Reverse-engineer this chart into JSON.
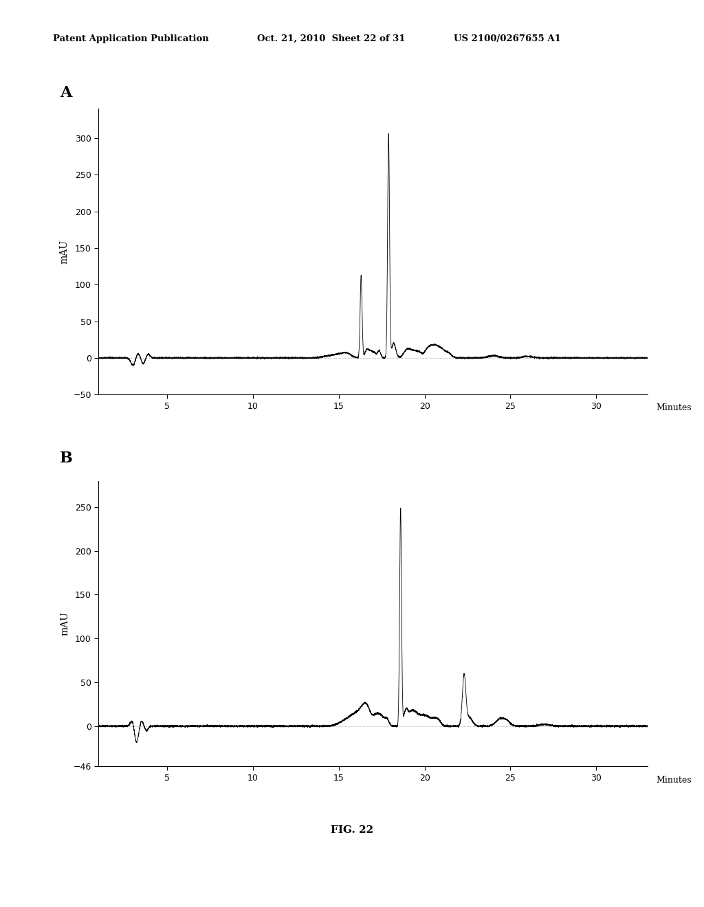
{
  "header_left": "Patent Application Publication",
  "header_mid": "Oct. 21, 2010  Sheet 22 of 31",
  "header_right": "US 2100/0267655 A1",
  "fig_label": "FIG. 22",
  "panel_A_label": "A",
  "panel_B_label": "B",
  "panel_A": {
    "ylabel": "mAU",
    "xlabel": "Minutes",
    "ylim": [
      -50,
      340
    ],
    "xlim": [
      1,
      33
    ],
    "yticks": [
      -50,
      0,
      50,
      100,
      150,
      200,
      250,
      300
    ],
    "xticks": [
      5,
      10,
      15,
      20,
      25,
      30
    ]
  },
  "panel_B": {
    "ylabel": "mAU",
    "xlabel": "Minutes",
    "ylim": [
      -46,
      280
    ],
    "xlim": [
      1,
      33
    ],
    "yticks": [
      -46,
      0,
      50,
      100,
      150,
      200,
      250
    ],
    "xticks": [
      5,
      10,
      15,
      20,
      25,
      30
    ]
  },
  "background_color": "#ffffff",
  "line_color": "#000000"
}
